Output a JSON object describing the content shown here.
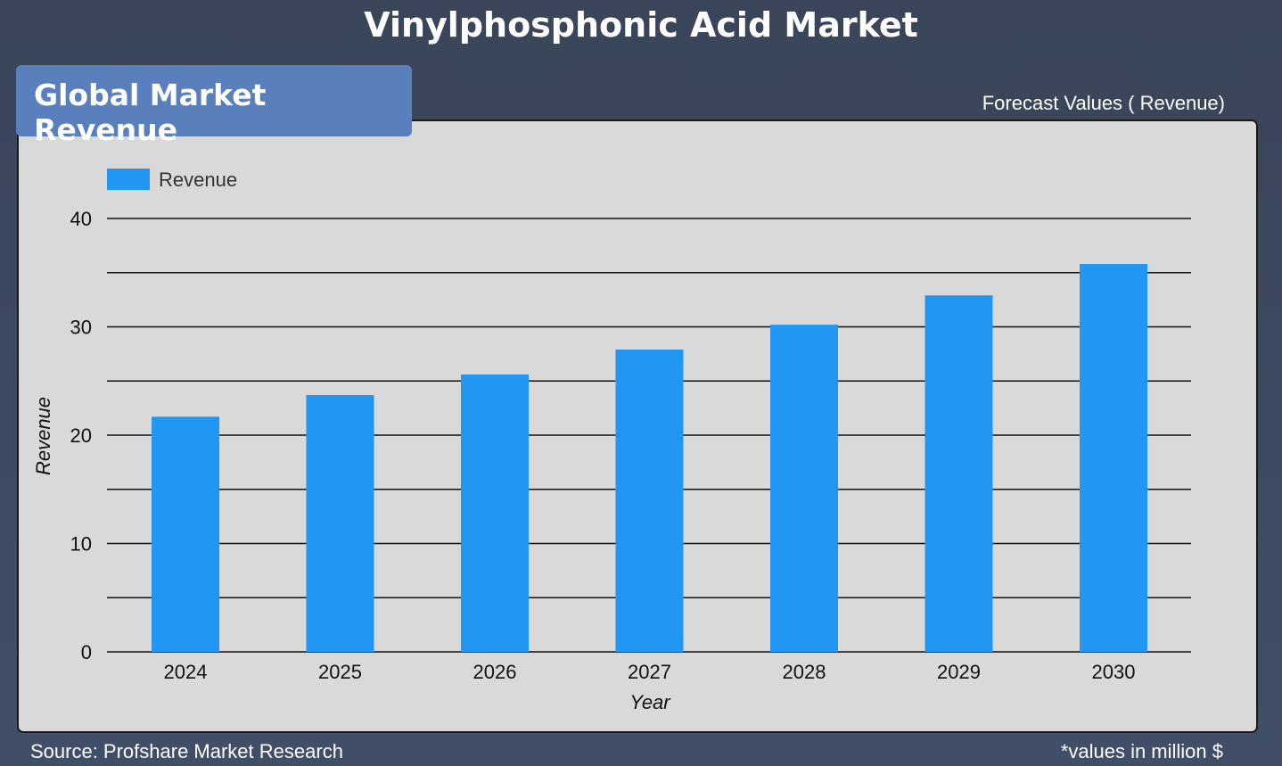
{
  "page": {
    "title": "Vinylphosphonic Acid Market",
    "badge": "Global Market Revenue",
    "forecast_label": "Forecast Values ( Revenue)",
    "source": "Source: Profshare Market Research",
    "units_note": "*values in million $"
  },
  "colors": {
    "bar": "#2196f3",
    "panel": "#d9d9d9",
    "badge": "#5a7fbd"
  },
  "chart_data": {
    "type": "bar",
    "categories": [
      "2024",
      "2025",
      "2026",
      "2027",
      "2028",
      "2029",
      "2030"
    ],
    "series": [
      {
        "name": "Revenue",
        "values": [
          21.7,
          23.7,
          25.6,
          27.9,
          30.2,
          32.9,
          35.8
        ]
      }
    ],
    "xlabel": "Year",
    "ylabel": "Revenue",
    "ylim": [
      0,
      40
    ],
    "yticks": [
      0,
      10,
      20,
      30,
      40
    ],
    "gridlines": [
      0,
      5,
      10,
      15,
      20,
      25,
      30,
      35,
      40
    ],
    "legend": "top-left"
  }
}
